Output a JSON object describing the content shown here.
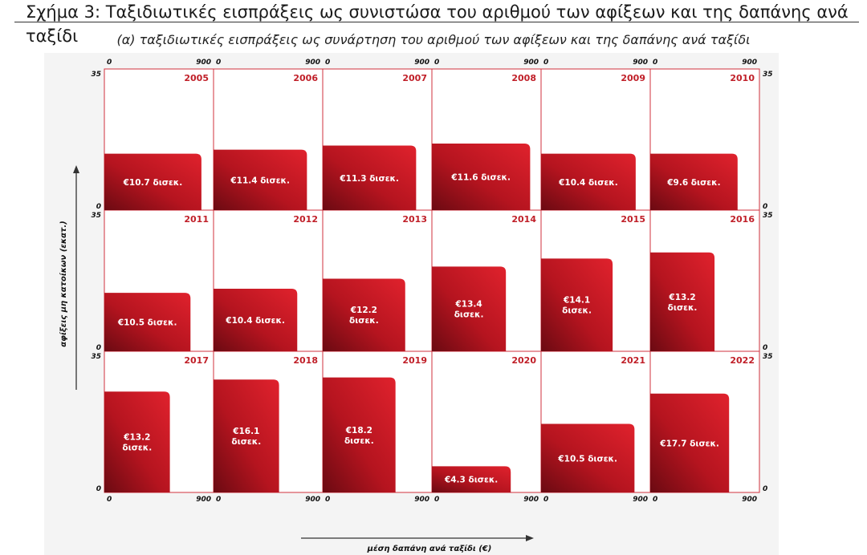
{
  "header": {
    "title": "Σχήμα 3:  Ταξιδιωτικές εισπράξεις ως συνιστώσα του αριθμού των αφίξεων και της δαπάνης ανά ταξίδι",
    "subtitle": "(α) ταξιδιωτικές εισπράξεις ως συνάρτηση του αριθμού των αφίξεων και της δαπάνης ανά ταξίδι"
  },
  "colors": {
    "grid": "#d0313c",
    "bar_light": "#e0222d",
    "bar_dark": "#6b0a12",
    "year_text": "#c01f28",
    "value_text": "#ffffff",
    "axis_text": "#111111"
  },
  "chart_data": {
    "type": "bar",
    "title": "",
    "xlabel": "μέση δαπάνη ανά ταξίδι (€)",
    "ylabel": "αφίξεις μη κατοίκων (εκατ.)",
    "xlim": [
      0,
      900
    ],
    "ylim": [
      0,
      35
    ],
    "x_tick_labels": [
      "0",
      "900"
    ],
    "y_tick_labels": [
      "0",
      "35"
    ],
    "panels": [
      {
        "year": "2005",
        "spend": 800,
        "arrivals": 14.0,
        "label": [
          "€10.7 δισεκ."
        ]
      },
      {
        "year": "2006",
        "spend": 770,
        "arrivals": 15.0,
        "label": [
          "€11.4 δισεκ."
        ]
      },
      {
        "year": "2007",
        "spend": 770,
        "arrivals": 16.0,
        "label": [
          "€11.3 δισεκ."
        ]
      },
      {
        "year": "2008",
        "spend": 810,
        "arrivals": 16.5,
        "label": [
          "€11.6 δισεκ."
        ]
      },
      {
        "year": "2009",
        "spend": 780,
        "arrivals": 14.0,
        "label": [
          "€10.4 δισεκ."
        ]
      },
      {
        "year": "2010",
        "spend": 720,
        "arrivals": 14.0,
        "label": [
          "€9.6 δισεκ."
        ]
      },
      {
        "year": "2011",
        "spend": 710,
        "arrivals": 14.5,
        "label": [
          "€10.5 δισεκ."
        ]
      },
      {
        "year": "2012",
        "spend": 690,
        "arrivals": 15.5,
        "label": [
          "€10.4 δισεκ."
        ]
      },
      {
        "year": "2013",
        "spend": 680,
        "arrivals": 18.0,
        "label": [
          "€12.2",
          "δισεκ."
        ]
      },
      {
        "year": "2014",
        "spend": 610,
        "arrivals": 21.0,
        "label": [
          "€13.4",
          "δισεκ."
        ]
      },
      {
        "year": "2015",
        "spend": 590,
        "arrivals": 23.0,
        "label": [
          "€14.1",
          "δισεκ."
        ]
      },
      {
        "year": "2016",
        "spend": 530,
        "arrivals": 24.5,
        "label": [
          "€13.2",
          "δισεκ."
        ]
      },
      {
        "year": "2017",
        "spend": 540,
        "arrivals": 25.0,
        "label": [
          "€13.2",
          "δισεκ."
        ]
      },
      {
        "year": "2018",
        "spend": 540,
        "arrivals": 28.0,
        "label": [
          "€16.1",
          "δισεκ."
        ]
      },
      {
        "year": "2019",
        "spend": 600,
        "arrivals": 28.5,
        "label": [
          "€18.2",
          "δισεκ."
        ]
      },
      {
        "year": "2020",
        "spend": 650,
        "arrivals": 6.5,
        "label": [
          "€4.3 δισεκ."
        ]
      },
      {
        "year": "2021",
        "spend": 770,
        "arrivals": 17.0,
        "label": [
          "€10.5 δισεκ."
        ]
      },
      {
        "year": "2022",
        "spend": 650,
        "arrivals": 24.5,
        "label": [
          "€17.7 δισεκ."
        ]
      }
    ]
  }
}
